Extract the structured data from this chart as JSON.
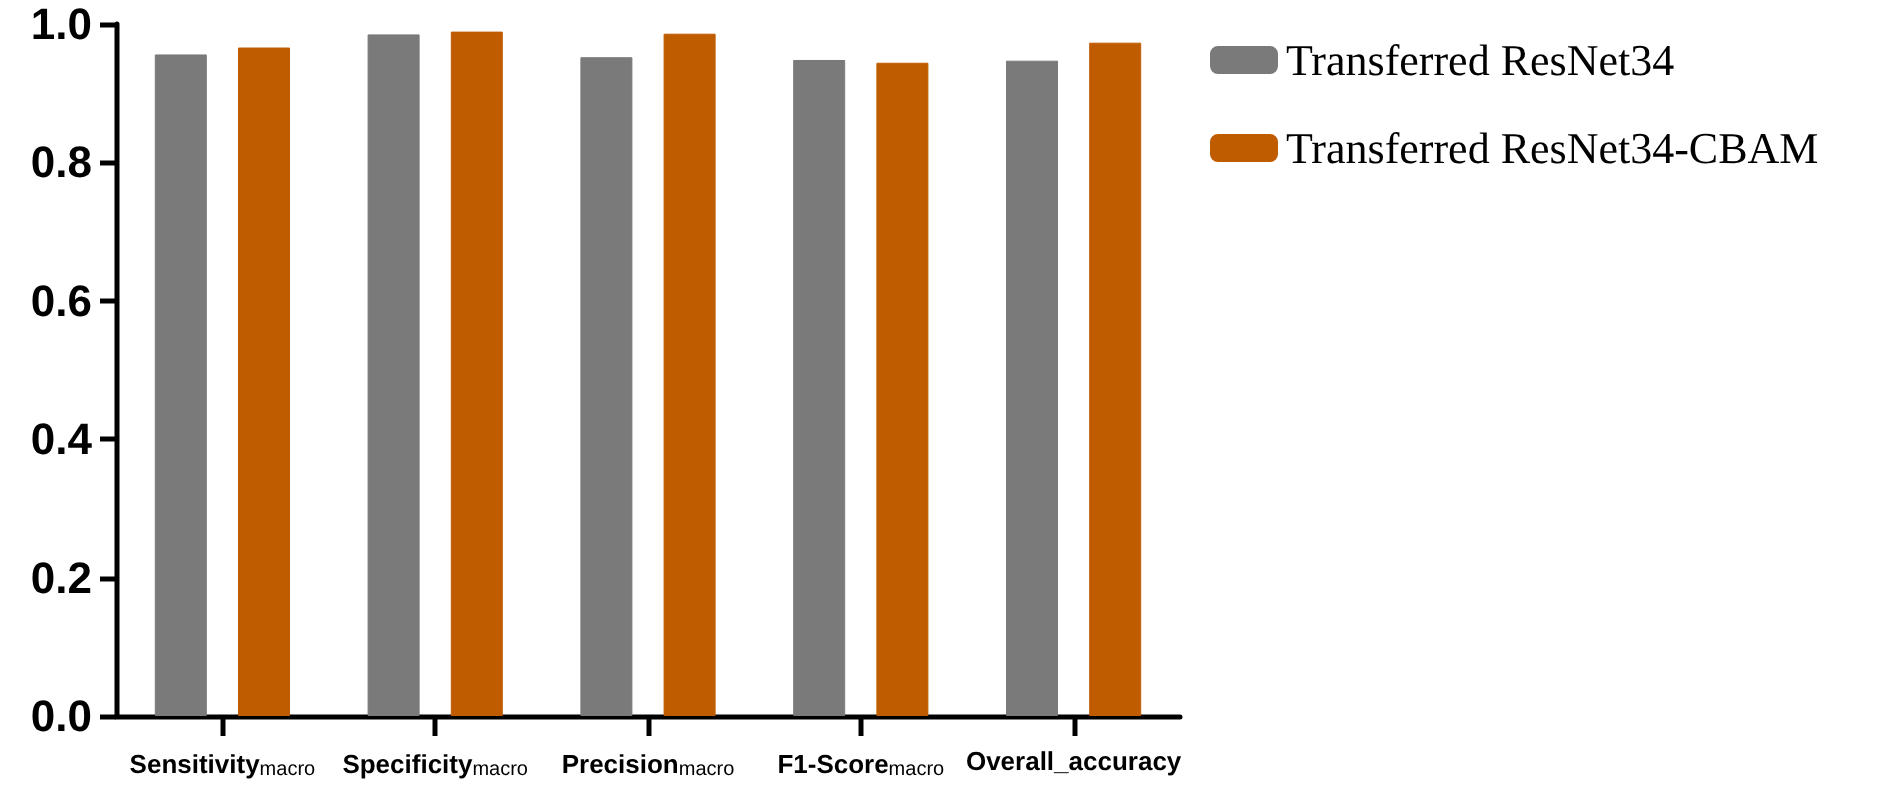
{
  "chart_data": {
    "type": "bar",
    "categories": [
      "Sensitivity$_{macro}$",
      "Specificity$_{macro}$",
      "Precision$_{macro}$",
      "F1-Score$_{macro}$",
      "Overall_accuracy"
    ],
    "series": [
      {
        "name": "Transferred ResNet34",
        "color": "#7a7a7a",
        "values": [
          0.956,
          0.985,
          0.952,
          0.948,
          0.947
        ]
      },
      {
        "name": "Transferred ResNet34-CBAM",
        "color": "#c05c00",
        "values": [
          0.966,
          0.989,
          0.986,
          0.944,
          0.973
        ]
      }
    ],
    "ylim": [
      0,
      1
    ],
    "yticks": [
      {
        "value": 0,
        "label": "0.0"
      },
      {
        "value": 0.2,
        "label": "0.2"
      },
      {
        "value": 0.4,
        "label": "0.4"
      },
      {
        "value": 0.6,
        "label": "0.6"
      },
      {
        "value": 0.8,
        "label": "0.8"
      },
      {
        "value": 1,
        "label": "1.0"
      }
    ],
    "grid": false,
    "legend": "top right"
  }
}
